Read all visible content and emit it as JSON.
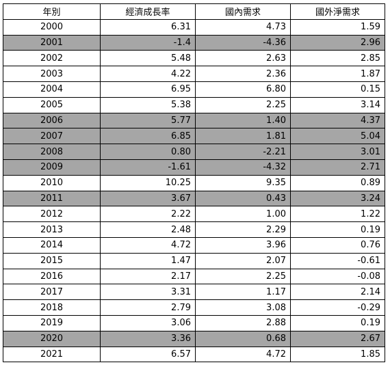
{
  "table": {
    "header": [
      "年別",
      "經濟成長率",
      "國內需求",
      "國外淨需求"
    ],
    "rows": [
      {
        "cells": [
          "2000",
          "6.31",
          "4.73",
          "1.59"
        ],
        "shaded": false
      },
      {
        "cells": [
          "2001",
          "-1.4",
          "-4.36",
          "2.96"
        ],
        "shaded": true
      },
      {
        "cells": [
          "2002",
          "5.48",
          "2.63",
          "2.85"
        ],
        "shaded": false
      },
      {
        "cells": [
          "2003",
          "4.22",
          "2.36",
          "1.87"
        ],
        "shaded": false
      },
      {
        "cells": [
          "2004",
          "6.95",
          "6.80",
          "0.15"
        ],
        "shaded": false
      },
      {
        "cells": [
          "2005",
          "5.38",
          "2.25",
          "3.14"
        ],
        "shaded": false
      },
      {
        "cells": [
          "2006",
          "5.77",
          "1.40",
          "4.37"
        ],
        "shaded": true
      },
      {
        "cells": [
          "2007",
          "6.85",
          "1.81",
          "5.04"
        ],
        "shaded": true
      },
      {
        "cells": [
          "2008",
          "0.80",
          "-2.21",
          "3.01"
        ],
        "shaded": true
      },
      {
        "cells": [
          "2009",
          "-1.61",
          "-4.32",
          "2.71"
        ],
        "shaded": true
      },
      {
        "cells": [
          "2010",
          "10.25",
          "9.35",
          "0.89"
        ],
        "shaded": false
      },
      {
        "cells": [
          "2011",
          "3.67",
          "0.43",
          "3.24"
        ],
        "shaded": true
      },
      {
        "cells": [
          "2012",
          "2.22",
          "1.00",
          "1.22"
        ],
        "shaded": false
      },
      {
        "cells": [
          "2013",
          "2.48",
          "2.29",
          "0.19"
        ],
        "shaded": false
      },
      {
        "cells": [
          "2014",
          "4.72",
          "3.96",
          "0.76"
        ],
        "shaded": false
      },
      {
        "cells": [
          "2015",
          "1.47",
          "2.07",
          "-0.61"
        ],
        "shaded": false
      },
      {
        "cells": [
          "2016",
          "2.17",
          "2.25",
          "-0.08"
        ],
        "shaded": false
      },
      {
        "cells": [
          "2017",
          "3.31",
          "1.17",
          "2.14"
        ],
        "shaded": false
      },
      {
        "cells": [
          "2018",
          "2.79",
          "3.08",
          "-0.29"
        ],
        "shaded": false
      },
      {
        "cells": [
          "2019",
          "3.06",
          "2.88",
          "0.19"
        ],
        "shaded": false
      },
      {
        "cells": [
          "2020",
          "3.36",
          "0.68",
          "2.67"
        ],
        "shaded": true
      },
      {
        "cells": [
          "2021",
          "6.57",
          "4.72",
          "1.85"
        ],
        "shaded": false
      }
    ],
    "shade_color": "#a6a6a6"
  }
}
